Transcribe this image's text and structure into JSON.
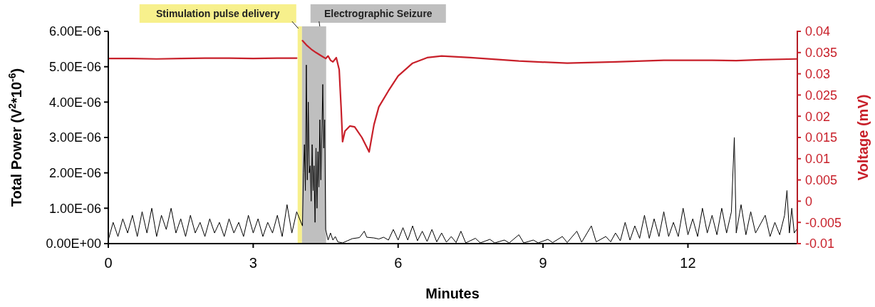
{
  "chart_data": {
    "type": "line",
    "xlabel": "Minutes",
    "ylabel": "Total Power (V$^{2}$*10$^{-6}$)",
    "y2label": "Voltage (mV)",
    "xlim": [
      0,
      14.25
    ],
    "xticks": [
      0,
      3,
      6,
      9,
      12
    ],
    "ylim": [
      0,
      6e-06
    ],
    "yticks": [
      {
        "value": 0,
        "label": "0.00E+00"
      },
      {
        "value": 1e-06,
        "label": "1.00E-06"
      },
      {
        "value": 2e-06,
        "label": "2.00E-06"
      },
      {
        "value": 3e-06,
        "label": "3.00E-06"
      },
      {
        "value": 4e-06,
        "label": "4.00E-06"
      },
      {
        "value": 5e-06,
        "label": "5.00E-06"
      },
      {
        "value": 6e-06,
        "label": "6.00E-06"
      }
    ],
    "y2lim": [
      -0.01,
      0.04
    ],
    "y2ticks": [
      -0.01,
      -0.005,
      0,
      0.005,
      0.01,
      0.015,
      0.02,
      0.025,
      0.03,
      0.035,
      0.04
    ],
    "grid": false,
    "line_style": "solid",
    "marker": "none",
    "bands": [
      {
        "axis": "x",
        "from": 3.92,
        "to": 4.01,
        "label": "Stimulation pulse delivery",
        "color": "#f7f08c"
      },
      {
        "axis": "x",
        "from": 4.01,
        "to": 4.51,
        "label": "Electrographic Seizure",
        "color": "#bfbfbf"
      }
    ],
    "series": [
      {
        "color": "#000000",
        "x": [
          0,
          0.1,
          0.2,
          0.3,
          0.4,
          0.5,
          0.6,
          0.7,
          0.8,
          0.9,
          1,
          1.1,
          1.2,
          1.3,
          1.4,
          1.5,
          1.6,
          1.7,
          1.8,
          1.9,
          2,
          2.1,
          2.2,
          2.3,
          2.4,
          2.5,
          2.6,
          2.7,
          2.8,
          2.9,
          3,
          3.1,
          3.2,
          3.3,
          3.4,
          3.5,
          3.6,
          3.7,
          3.8,
          3.9,
          4.02,
          4.04,
          4.06,
          4.08,
          4.1,
          4.12,
          4.14,
          4.16,
          4.18,
          4.2,
          4.22,
          4.24,
          4.26,
          4.28,
          4.3,
          4.32,
          4.34,
          4.36,
          4.38,
          4.4,
          4.42,
          4.44,
          4.46,
          4.48,
          4.5,
          4.55,
          4.6,
          4.65,
          4.7,
          4.75,
          4.85,
          4.95,
          5.05,
          5.2,
          5.3,
          5.35,
          5.5,
          5.6,
          5.7,
          5.8,
          5.9,
          6,
          6.1,
          6.2,
          6.3,
          6.4,
          6.5,
          6.6,
          6.7,
          6.8,
          6.9,
          7,
          7.1,
          7.2,
          7.3,
          7.4,
          7.6,
          7.7,
          7.9,
          8,
          8.2,
          8.3,
          8.5,
          8.6,
          8.8,
          8.9,
          9.1,
          9.2,
          9.4,
          9.5,
          9.7,
          9.8,
          10,
          10.1,
          10.3,
          10.4,
          10.5,
          10.6,
          10.7,
          10.8,
          10.9,
          11,
          11.1,
          11.2,
          11.3,
          11.4,
          11.5,
          11.6,
          11.7,
          11.8,
          11.9,
          12,
          12.1,
          12.2,
          12.3,
          12.4,
          12.5,
          12.6,
          12.7,
          12.8,
          12.9,
          12.96,
          13,
          13.1,
          13.2,
          13.3,
          13.4,
          13.6,
          13.7,
          13.8,
          13.9,
          14,
          14.05,
          14.1,
          14.15,
          14.2,
          14.25
        ],
        "values": [
          1e-07,
          6e-07,
          2e-07,
          7e-07,
          3e-07,
          8e-07,
          2e-07,
          9e-07,
          3e-07,
          1e-06,
          2e-07,
          8e-07,
          4e-07,
          1e-06,
          3e-07,
          7e-07,
          2e-07,
          8e-07,
          3e-07,
          6e-07,
          2e-07,
          7e-07,
          3e-07,
          6e-07,
          2e-07,
          7e-07,
          3e-07,
          6e-07,
          2e-07,
          8e-07,
          3e-07,
          7e-07,
          2e-07,
          6e-07,
          3e-07,
          8e-07,
          2e-07,
          1.1e-06,
          3e-07,
          9e-07,
          5e-07,
          2e-06,
          2.8e-06,
          1.5e-06,
          5.05e-06,
          1.8e-06,
          4e-06,
          2e-06,
          2.2e-06,
          1.2e-06,
          2.8e-06,
          1.5e-06,
          2.2e-06,
          6e-07,
          2.7e-06,
          1e-06,
          2.6e-06,
          1.6e-06,
          3.5e-06,
          1.8e-06,
          3e-06,
          4.5e-06,
          2.7e-06,
          3.5e-06,
          4e-07,
          1e-07,
          3e-07,
          1e-07,
          2e-07,
          5e-08,
          2e-08,
          8e-08,
          1.4e-07,
          1.7e-07,
          3.5e-07,
          1.8e-07,
          1.6e-07,
          1.3e-07,
          1.8e-07,
          1e-07,
          4e-07,
          1e-07,
          4.5e-07,
          1e-07,
          5e-07,
          8e-08,
          3.5e-07,
          6e-08,
          4e-07,
          5e-08,
          3e-07,
          4e-08,
          2e-07,
          3e-08,
          3.5e-07,
          2e-08,
          1.5e-07,
          2e-08,
          1.2e-07,
          2e-08,
          1e-07,
          2e-08,
          2.5e-07,
          2e-08,
          1e-07,
          2e-08,
          1.2e-07,
          3e-08,
          2e-07,
          3e-08,
          3.5e-07,
          4e-08,
          5e-07,
          5e-08,
          2e-07,
          5e-08,
          3e-07,
          8e-08,
          6e-07,
          1e-07,
          5e-07,
          1.5e-07,
          8e-07,
          1.5e-07,
          7e-07,
          2e-07,
          9e-07,
          2e-07,
          6e-07,
          2e-07,
          1e-06,
          2.5e-07,
          7e-07,
          2e-07,
          1e-06,
          3e-07,
          8e-07,
          2.5e-07,
          1e-06,
          3e-07,
          9e-07,
          3e-06,
          3e-07,
          1.1e-06,
          2.5e-07,
          9e-07,
          3e-07,
          8e-07,
          2e-07,
          6e-07,
          2.5e-07,
          8e-07,
          1.5e-06,
          3e-07,
          1e-06,
          3e-07,
          4e-07
        ]
      },
      {
        "color": "#c8202a",
        "axis": "y2",
        "x": [
          0,
          0.5,
          1,
          1.5,
          2,
          2.5,
          3,
          3.5,
          3.9,
          3.95,
          4.02,
          4.1,
          4.2,
          4.3,
          4.4,
          4.5,
          4.55,
          4.6,
          4.65,
          4.72,
          4.78,
          4.82,
          4.85,
          4.9,
          5,
          5.1,
          5.25,
          5.4,
          5.5,
          5.6,
          5.8,
          6,
          6.3,
          6.6,
          6.9,
          7.5,
          8.5,
          9.5,
          10.5,
          11.5,
          12.5,
          13,
          13.5,
          14.25
        ],
        "values": [
          0.0336,
          0.0336,
          0.0335,
          0.0336,
          0.0337,
          0.0337,
          0.0336,
          0.0337,
          0.0337,
          null,
          0.0378,
          0.0368,
          0.0358,
          0.035,
          0.0343,
          0.0336,
          0.0342,
          0.0332,
          0.0328,
          0.0338,
          0.031,
          0.022,
          0.014,
          0.0165,
          0.0177,
          0.0175,
          0.015,
          0.0116,
          0.018,
          0.0222,
          0.026,
          0.0295,
          0.0325,
          0.0338,
          0.0342,
          0.0338,
          0.033,
          0.0325,
          0.0328,
          0.0332,
          0.0332,
          0.0331,
          0.0333,
          0.0335
        ]
      }
    ]
  }
}
